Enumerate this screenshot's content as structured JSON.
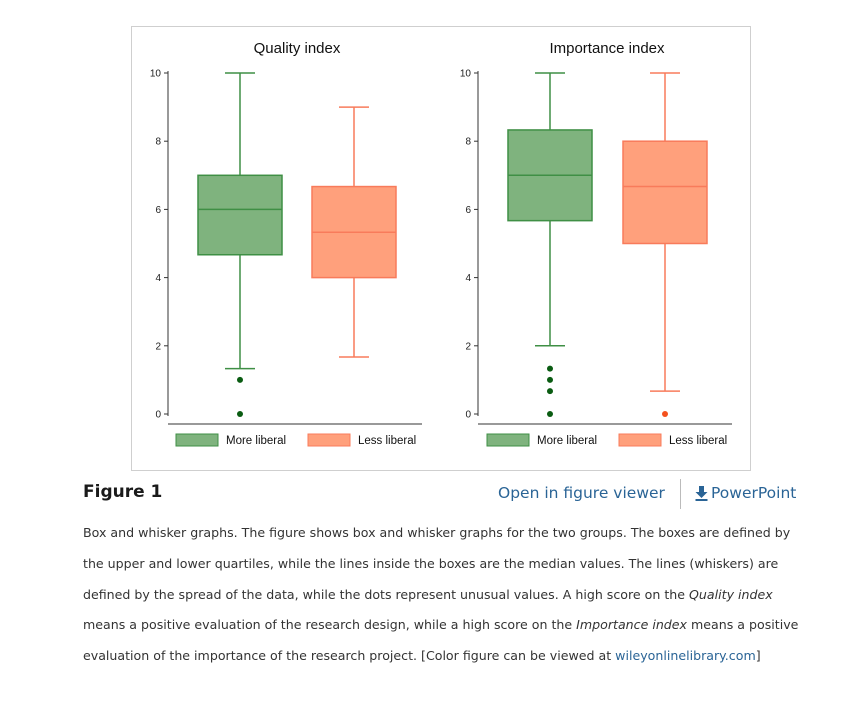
{
  "chart_data": [
    {
      "type": "box",
      "title": "Quality index",
      "ylim": [
        0,
        10
      ],
      "yticks": [
        0,
        2,
        4,
        6,
        8,
        10
      ],
      "legend_position": "bottom",
      "series": [
        {
          "name": "More liberal",
          "color": "#7fb37e",
          "stroke": "#3f8f45",
          "whisker_low": 1.33,
          "q1": 4.67,
          "median": 6.0,
          "q3": 7.0,
          "whisker_high": 10,
          "outliers": [
            1,
            0
          ]
        },
        {
          "name": "Less liberal",
          "color": "#ffa07c",
          "stroke": "#f87b5b",
          "whisker_low": 1.67,
          "q1": 4.0,
          "median": 5.33,
          "q3": 6.67,
          "whisker_high": 9,
          "outliers": []
        }
      ]
    },
    {
      "type": "box",
      "title": "Importance index",
      "ylim": [
        0,
        10
      ],
      "yticks": [
        0,
        2,
        4,
        6,
        8,
        10
      ],
      "legend_position": "bottom",
      "series": [
        {
          "name": "More liberal",
          "color": "#7fb37e",
          "stroke": "#3f8f45",
          "whisker_low": 2.0,
          "q1": 5.67,
          "median": 7.0,
          "q3": 8.33,
          "whisker_high": 10,
          "outliers": [
            1.33,
            1.0,
            0.67,
            0
          ]
        },
        {
          "name": "Less liberal",
          "color": "#ffa07c",
          "stroke": "#f87b5b",
          "whisker_low": 0.67,
          "q1": 5.0,
          "median": 6.67,
          "q3": 8.0,
          "whisker_high": 10,
          "outliers": [
            0
          ]
        }
      ]
    }
  ],
  "colors": {
    "outlier_green": "#0a5c12",
    "outlier_orange": "#f4511e",
    "link": "#2a6496"
  },
  "figure": {
    "label": "Figure 1",
    "viewer_link": "Open in figure viewer",
    "download_icon": "download-icon",
    "ppt_link": "PowerPoint"
  },
  "caption": {
    "part1": "Box and whisker graphs. The figure shows box and whisker graphs for the two groups. The boxes are defined by the upper and lower quartiles, while the lines inside the boxes are the median values. The lines (whiskers) are defined by the spread of the data, while the dots represent unusual values. A high score on the ",
    "italic1": "Quality index",
    "part2": " means a positive evaluation of the research design, while a high score on the ",
    "italic2": "Importance index",
    "part3": " means a positive evaluation of the importance of the research project. [Color figure can be viewed at ",
    "link": "wileyonlinelibrary.com",
    "part4": "]"
  }
}
